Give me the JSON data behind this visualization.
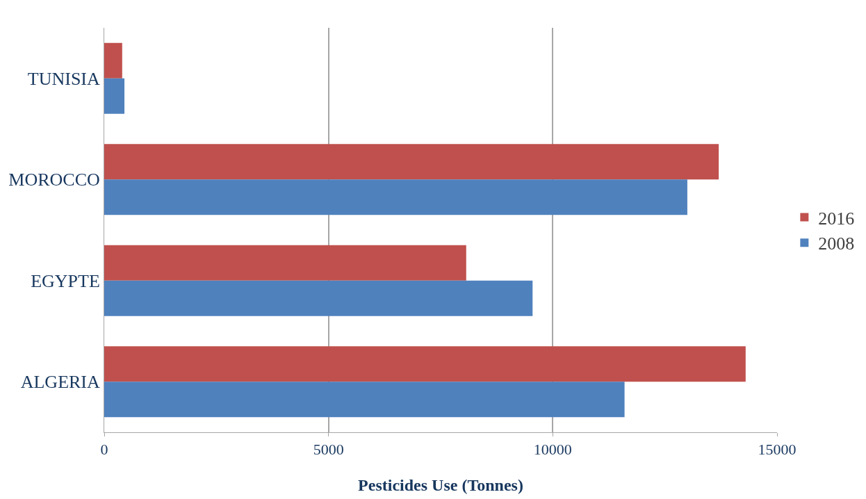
{
  "chart_data": {
    "type": "bar",
    "orientation": "horizontal",
    "xlabel": "Pesticides Use (Tonnes)",
    "categories": [
      "TUNISIA",
      "MOROCCO",
      "EGYPTE",
      "ALGERIA"
    ],
    "series": [
      {
        "name": "2016",
        "color": "#c0504d",
        "values": [
          400,
          13700,
          8070,
          14300
        ]
      },
      {
        "name": "2008",
        "color": "#4f81bd",
        "values": [
          450,
          13000,
          9550,
          11600
        ]
      }
    ],
    "xlim": [
      0,
      15000
    ],
    "xticks": [
      0,
      5000,
      10000,
      15000
    ],
    "grid": "x",
    "legend": "right"
  }
}
